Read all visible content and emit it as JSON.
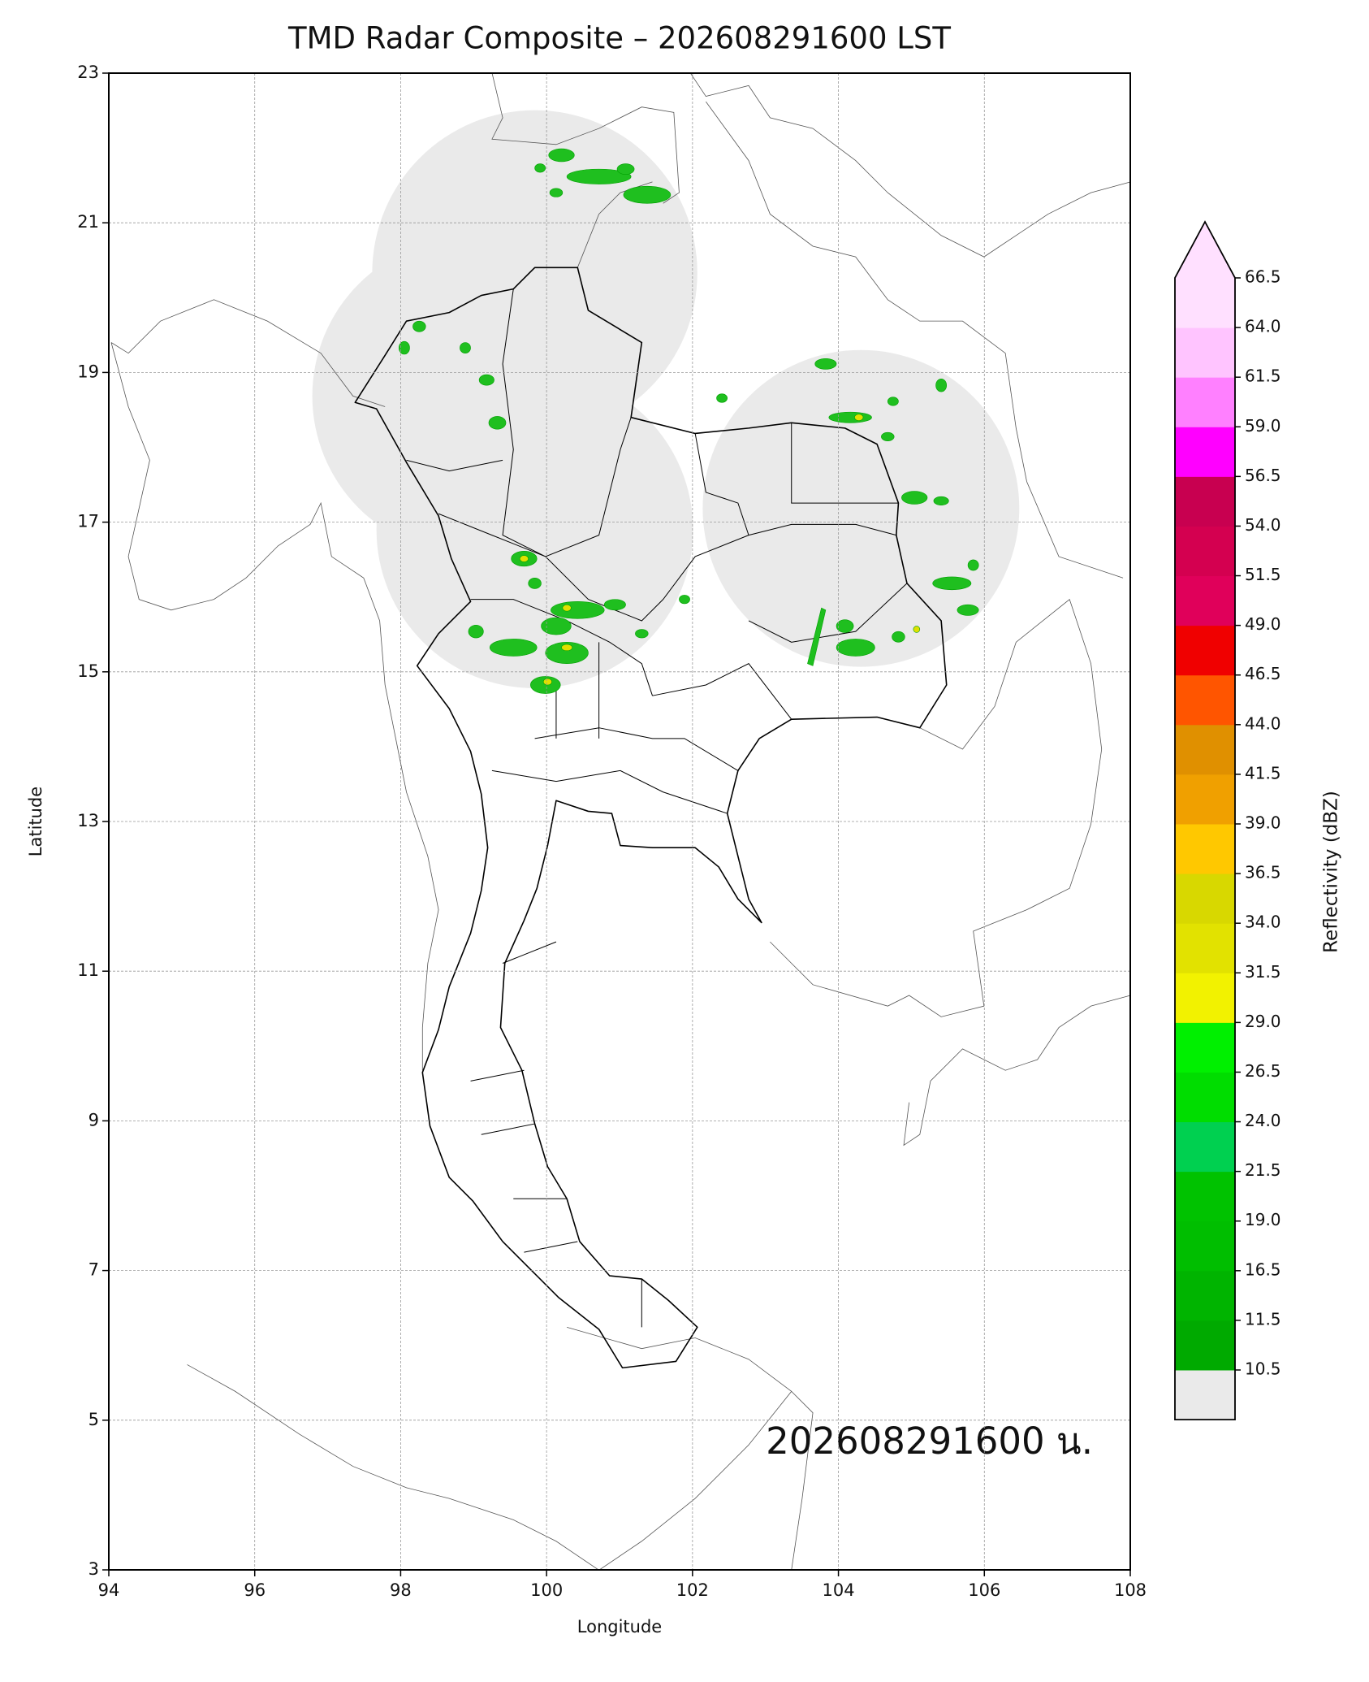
{
  "chart_data": {
    "type": "map",
    "title": "TMD Radar Composite – 202608291600 LST",
    "x_label": "Longitude",
    "y_label": "Latitude",
    "xlim": [
      94,
      108
    ],
    "ylim": [
      3,
      23
    ],
    "xticks": [
      94,
      96,
      98,
      100,
      102,
      104,
      106,
      108
    ],
    "yticks": [
      3,
      5,
      7,
      9,
      11,
      13,
      15,
      17,
      19,
      21,
      23
    ],
    "grid": true,
    "annotation": "202608291600 น.",
    "colorbar": {
      "label": "Reflectivity (dBZ)",
      "ticks": [
        10.5,
        11.5,
        16.5,
        {
          "value": 19,
          "label": "19.0"
        },
        21.5,
        {
          "value": 24,
          "label": "24.0"
        },
        26.5,
        {
          "value": 29,
          "label": "29.0"
        },
        31.5,
        {
          "value": 34,
          "label": "34.0"
        },
        36.5,
        {
          "value": 39,
          "label": "39.0"
        },
        41.5,
        {
          "value": 44,
          "label": "44.0"
        },
        46.5,
        {
          "value": 49,
          "label": "49.0"
        },
        51.5,
        {
          "value": 54,
          "label": "54.0"
        },
        56.5,
        {
          "value": 59,
          "label": "59.0"
        },
        61.5,
        {
          "value": 64,
          "label": "64.0"
        },
        66.5
      ],
      "colors": [
        "#00aa00",
        "#00b400",
        "#00be00",
        "#00c200",
        "#00d050",
        "#00dd00",
        "#00f000",
        "#f2f200",
        "#e2e200",
        "#d8d800",
        "#ffc800",
        "#f0a000",
        "#e09000",
        "#ff5500",
        "#f00000",
        "#e0005a",
        "#d40050",
        "#c80050",
        "#ff00ff",
        "#ff80ff",
        "#ffc4ff",
        "#ffe0ff"
      ],
      "under_color": "#eaeaea",
      "over_color": "#ffe0ff"
    }
  }
}
